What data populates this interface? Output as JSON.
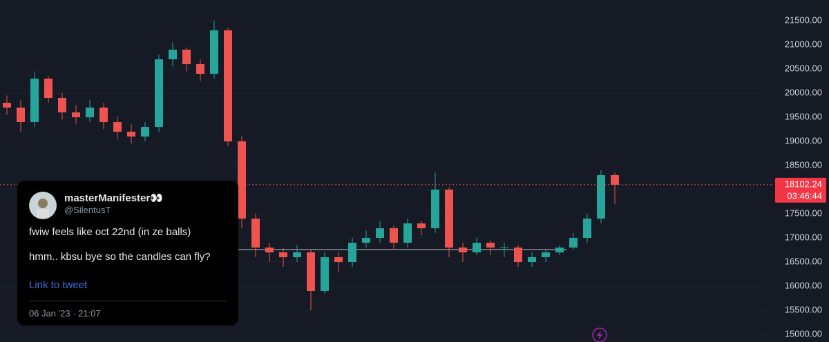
{
  "chart_data": {
    "type": "candlestick",
    "open": [
      19800,
      19700,
      19400,
      20300,
      19900,
      19600,
      19500,
      19700,
      19400,
      19200,
      19100,
      19300,
      20700,
      20900,
      20600,
      20400,
      21300,
      19000,
      17400,
      16800,
      16700,
      16600,
      16700,
      15900,
      16600,
      16500,
      16900,
      17000,
      17200,
      16900,
      17300,
      17200,
      18000,
      16800,
      16700,
      16900,
      16800,
      16800,
      16500,
      16600,
      16700,
      16800,
      17000,
      17400,
      18300
    ],
    "high": [
      19950,
      19850,
      20450,
      20350,
      20000,
      19750,
      19850,
      19800,
      19500,
      19350,
      19400,
      20800,
      21050,
      20950,
      20700,
      21500,
      21350,
      19100,
      17500,
      16900,
      16800,
      16850,
      16750,
      16700,
      16700,
      17000,
      17150,
      17350,
      17250,
      17400,
      17350,
      18350,
      18050,
      16900,
      17000,
      16950,
      16900,
      16850,
      16700,
      16750,
      16850,
      17100,
      17500,
      18400,
      18350
    ],
    "low": [
      19550,
      19200,
      19300,
      19800,
      19450,
      19350,
      19400,
      19250,
      19050,
      18950,
      19000,
      19200,
      20550,
      20450,
      20250,
      20300,
      18900,
      17200,
      16600,
      16500,
      16400,
      16500,
      15500,
      15850,
      16300,
      16400,
      16800,
      16900,
      16750,
      16800,
      17050,
      17100,
      16600,
      16500,
      16650,
      16650,
      16600,
      16400,
      16400,
      16500,
      16650,
      16750,
      16900,
      17300,
      17700
    ],
    "close": [
      19700,
      19400,
      20300,
      19900,
      19600,
      19500,
      19700,
      19400,
      19200,
      19100,
      19300,
      20700,
      20900,
      20600,
      20400,
      21300,
      19000,
      17400,
      16800,
      16700,
      16600,
      16700,
      15900,
      16600,
      16500,
      16900,
      17000,
      17200,
      16900,
      17300,
      17200,
      18000,
      16800,
      16700,
      16900,
      16800,
      16800,
      16500,
      16600,
      16700,
      16800,
      17000,
      17400,
      18300,
      18102.24
    ],
    "up_color": "#26a69a",
    "down_color": "#ef5350",
    "ylim": [
      14843,
      21929
    ],
    "yticks": [
      {
        "value": 15000,
        "label": "15000.00"
      },
      {
        "value": 15500,
        "label": "15500.00"
      },
      {
        "value": 16000,
        "label": "16000.00"
      },
      {
        "value": 16500,
        "label": "16500.00"
      },
      {
        "value": 17000,
        "label": "17000.00"
      },
      {
        "value": 17500,
        "label": "17500.00"
      },
      {
        "value": 18000,
        "label": "18000.00"
      },
      {
        "value": 18500,
        "label": "18500.00"
      },
      {
        "value": 19000,
        "label": "19000.00"
      },
      {
        "value": 19500,
        "label": "19500.00"
      },
      {
        "value": 20000,
        "label": "20000.00"
      },
      {
        "value": 20500,
        "label": "20500.00"
      },
      {
        "value": 21000,
        "label": "21000.00"
      },
      {
        "value": 21500,
        "label": "21500.00"
      }
    ],
    "last_price": 18102.24,
    "countdown": "03:46:44",
    "hline": 16760
  },
  "tweet": {
    "name": "masterManifester👀",
    "handle": "@SilentusT",
    "lines": [
      "fwiw feels like oct 22nd (in ze balls)",
      "hmm.. kbsu bye so the candles can fly?"
    ],
    "link": "Link to tweet",
    "date": "06 Jan '23 · 21:07"
  }
}
